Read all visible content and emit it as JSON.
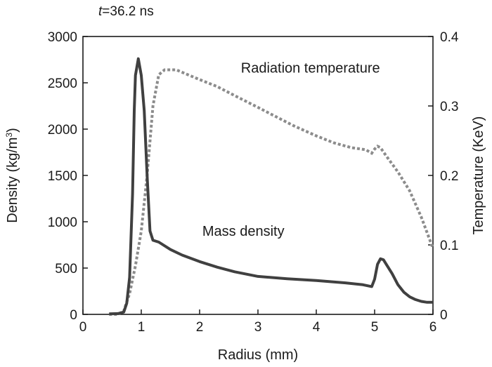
{
  "chart_data": {
    "type": "line",
    "title_var": "t",
    "title_rest": "=36.2 ns",
    "xlabel": "Radius (mm)",
    "ylabel_left_main": "Density (kg/m",
    "ylabel_left_sup": "3",
    "ylabel_left_close": ")",
    "ylabel_right": "Temperature (KeV)",
    "xlim": [
      0,
      6
    ],
    "ylim_left": [
      0,
      3000
    ],
    "ylim_right": [
      0,
      0.4
    ],
    "x_ticks": [
      "0",
      "1",
      "2",
      "3",
      "4",
      "5",
      "6"
    ],
    "y_left_ticks": [
      "0",
      "500",
      "1000",
      "1500",
      "2000",
      "2500",
      "3000"
    ],
    "y_right_ticks": [
      "0",
      "0.1",
      "0.2",
      "0.3",
      "0.4"
    ],
    "grid": false,
    "series": [
      {
        "name": "Mass density",
        "axis": "left",
        "style": "solid",
        "color": "#404040",
        "points": [
          [
            0.45,
            5
          ],
          [
            0.6,
            8
          ],
          [
            0.7,
            25
          ],
          [
            0.75,
            120
          ],
          [
            0.8,
            400
          ],
          [
            0.85,
            1300
          ],
          [
            0.88,
            2200
          ],
          [
            0.9,
            2580
          ],
          [
            0.95,
            2760
          ],
          [
            1.0,
            2580
          ],
          [
            1.05,
            2200
          ],
          [
            1.1,
            1500
          ],
          [
            1.15,
            900
          ],
          [
            1.2,
            800
          ],
          [
            1.3,
            780
          ],
          [
            1.5,
            700
          ],
          [
            1.7,
            640
          ],
          [
            2.0,
            570
          ],
          [
            2.3,
            510
          ],
          [
            2.6,
            460
          ],
          [
            3.0,
            410
          ],
          [
            3.5,
            385
          ],
          [
            4.0,
            365
          ],
          [
            4.5,
            340
          ],
          [
            4.8,
            320
          ],
          [
            4.95,
            300
          ],
          [
            5.0,
            380
          ],
          [
            5.05,
            540
          ],
          [
            5.1,
            600
          ],
          [
            5.15,
            590
          ],
          [
            5.2,
            540
          ],
          [
            5.3,
            440
          ],
          [
            5.4,
            320
          ],
          [
            5.5,
            240
          ],
          [
            5.6,
            190
          ],
          [
            5.7,
            160
          ],
          [
            5.8,
            140
          ],
          [
            5.9,
            130
          ],
          [
            6.0,
            130
          ]
        ]
      },
      {
        "name": "Radiation temperature",
        "axis": "right",
        "style": "dashed",
        "color": "#8c8c8c",
        "points": [
          [
            0.45,
            0.0
          ],
          [
            0.6,
            0.0
          ],
          [
            0.7,
            0.005
          ],
          [
            0.8,
            0.03
          ],
          [
            0.9,
            0.07
          ],
          [
            1.0,
            0.12
          ],
          [
            1.1,
            0.2
          ],
          [
            1.2,
            0.3
          ],
          [
            1.3,
            0.345
          ],
          [
            1.4,
            0.352
          ],
          [
            1.6,
            0.352
          ],
          [
            1.8,
            0.345
          ],
          [
            2.0,
            0.338
          ],
          [
            2.3,
            0.328
          ],
          [
            2.6,
            0.315
          ],
          [
            3.0,
            0.298
          ],
          [
            3.3,
            0.285
          ],
          [
            3.6,
            0.272
          ],
          [
            4.0,
            0.257
          ],
          [
            4.3,
            0.247
          ],
          [
            4.6,
            0.24
          ],
          [
            4.85,
            0.237
          ],
          [
            4.95,
            0.232
          ],
          [
            5.0,
            0.238
          ],
          [
            5.05,
            0.242
          ],
          [
            5.1,
            0.24
          ],
          [
            5.2,
            0.228
          ],
          [
            5.4,
            0.205
          ],
          [
            5.6,
            0.178
          ],
          [
            5.8,
            0.14
          ],
          [
            6.0,
            0.095
          ]
        ]
      }
    ],
    "annotations": [
      {
        "text": "Radiation temperature",
        "x": 3.9,
        "y_right": 0.355
      },
      {
        "text": "Mass density",
        "x": 2.75,
        "y_left": 900
      }
    ]
  }
}
